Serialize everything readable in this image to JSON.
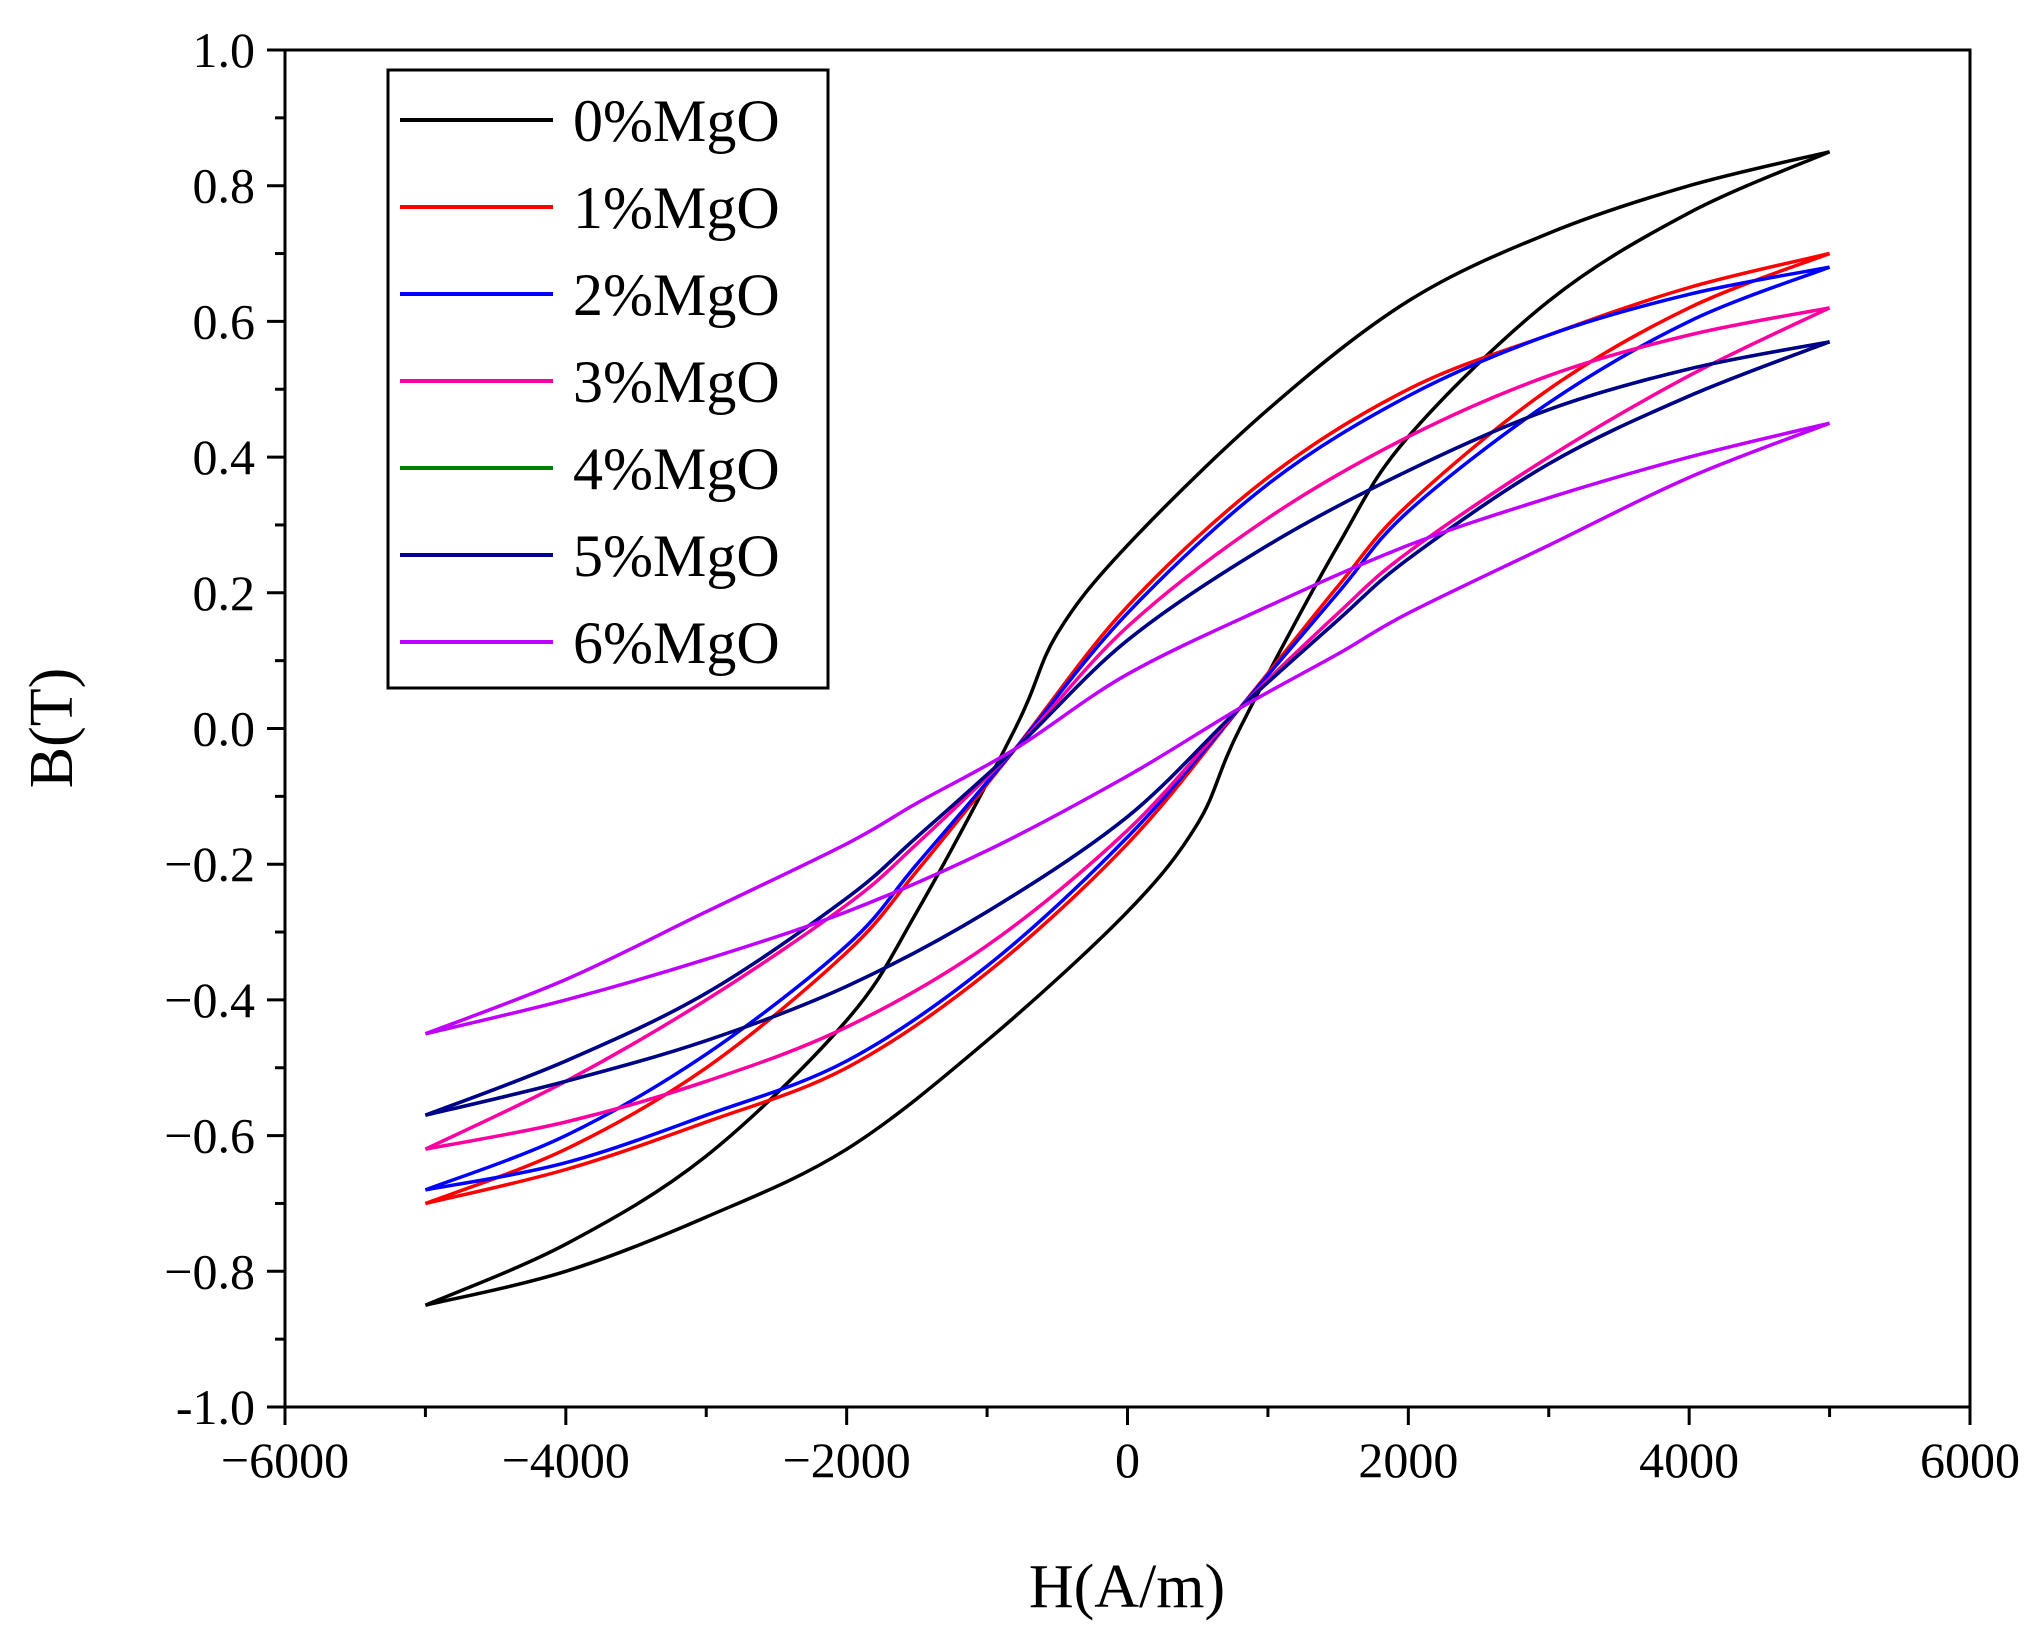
{
  "chart_data": {
    "type": "line",
    "title": "",
    "xlabel": "H(A/m)",
    "ylabel": "B(T)",
    "xlim": [
      -6000,
      6000
    ],
    "ylim": [
      -1.0,
      1.0
    ],
    "x_ticks": [
      -6000,
      -4000,
      -2000,
      0,
      2000,
      4000,
      6000
    ],
    "x_tick_labels": [
      "−6000",
      "−4000",
      "−2000",
      "0",
      "2000",
      "4000",
      "6000"
    ],
    "y_ticks": [
      -1.0,
      -0.8,
      -0.6,
      -0.4,
      -0.2,
      0.0,
      0.2,
      0.4,
      0.6,
      0.8,
      1.0
    ],
    "y_tick_labels": [
      "-1.0",
      "−0.8",
      "−0.6",
      "−0.4",
      "−0.2",
      "0.0",
      "0.2",
      "0.4",
      "0.6",
      "0.8",
      "1.0"
    ],
    "grid": false,
    "legend_position": "top-left",
    "series": [
      {
        "name": "0%MgO",
        "color": "#000000",
        "upper": [
          [
            -5000,
            -0.85
          ],
          [
            -4000,
            -0.8
          ],
          [
            -3000,
            -0.72
          ],
          [
            -2000,
            -0.62
          ],
          [
            -1000,
            -0.46
          ],
          [
            0,
            -0.27
          ],
          [
            500,
            -0.14
          ],
          [
            800,
            0.0
          ],
          [
            1500,
            0.27
          ],
          [
            2000,
            0.43
          ],
          [
            3000,
            0.63
          ],
          [
            4000,
            0.76
          ],
          [
            5000,
            0.85
          ]
        ],
        "lower": [
          [
            5000,
            0.85
          ],
          [
            4000,
            0.8
          ],
          [
            3000,
            0.73
          ],
          [
            2000,
            0.63
          ],
          [
            1000,
            0.47
          ],
          [
            0,
            0.27
          ],
          [
            -500,
            0.14
          ],
          [
            -800,
            0.0
          ],
          [
            -1500,
            -0.27
          ],
          [
            -2000,
            -0.43
          ],
          [
            -3000,
            -0.63
          ],
          [
            -4000,
            -0.76
          ],
          [
            -5000,
            -0.85
          ]
        ]
      },
      {
        "name": "1%MgO",
        "color": "#ff0000",
        "upper": [
          [
            -5000,
            -0.7
          ],
          [
            -4000,
            -0.65
          ],
          [
            -3000,
            -0.58
          ],
          [
            -2000,
            -0.5
          ],
          [
            -1000,
            -0.36
          ],
          [
            0,
            -0.17
          ],
          [
            800,
            0.03
          ],
          [
            1500,
            0.21
          ],
          [
            2000,
            0.33
          ],
          [
            3000,
            0.5
          ],
          [
            4000,
            0.62
          ],
          [
            5000,
            0.7
          ]
        ],
        "lower": [
          [
            5000,
            0.7
          ],
          [
            4000,
            0.65
          ],
          [
            3000,
            0.58
          ],
          [
            2000,
            0.5
          ],
          [
            1000,
            0.37
          ],
          [
            0,
            0.18
          ],
          [
            -800,
            -0.03
          ],
          [
            -1500,
            -0.21
          ],
          [
            -2000,
            -0.33
          ],
          [
            -3000,
            -0.5
          ],
          [
            -4000,
            -0.62
          ],
          [
            -5000,
            -0.7
          ]
        ]
      },
      {
        "name": "2%MgO",
        "color": "#0000ff",
        "upper": [
          [
            -5000,
            -0.68
          ],
          [
            -4000,
            -0.64
          ],
          [
            -3000,
            -0.57
          ],
          [
            -2000,
            -0.49
          ],
          [
            -1000,
            -0.35
          ],
          [
            0,
            -0.16
          ],
          [
            800,
            0.03
          ],
          [
            1500,
            0.2
          ],
          [
            2000,
            0.32
          ],
          [
            3000,
            0.48
          ],
          [
            4000,
            0.6
          ],
          [
            5000,
            0.68
          ]
        ],
        "lower": [
          [
            5000,
            0.68
          ],
          [
            4000,
            0.64
          ],
          [
            3000,
            0.58
          ],
          [
            2000,
            0.49
          ],
          [
            1000,
            0.36
          ],
          [
            0,
            0.17
          ],
          [
            -800,
            -0.03
          ],
          [
            -1500,
            -0.2
          ],
          [
            -2000,
            -0.32
          ],
          [
            -3000,
            -0.48
          ],
          [
            -4000,
            -0.6
          ],
          [
            -5000,
            -0.68
          ]
        ]
      },
      {
        "name": "3%MgO",
        "color": "#ff00a0",
        "upper": [
          [
            -5000,
            -0.62
          ],
          [
            -4000,
            -0.58
          ],
          [
            -3000,
            -0.52
          ],
          [
            -2000,
            -0.44
          ],
          [
            -1000,
            -0.32
          ],
          [
            0,
            -0.15
          ],
          [
            800,
            0.03
          ],
          [
            1500,
            0.17
          ],
          [
            2000,
            0.26
          ],
          [
            3000,
            0.4
          ],
          [
            4000,
            0.52
          ],
          [
            5000,
            0.62
          ]
        ],
        "lower": [
          [
            5000,
            0.62
          ],
          [
            4000,
            0.58
          ],
          [
            3000,
            0.52
          ],
          [
            2000,
            0.43
          ],
          [
            1000,
            0.31
          ],
          [
            0,
            0.15
          ],
          [
            -800,
            -0.03
          ],
          [
            -1500,
            -0.17
          ],
          [
            -2000,
            -0.26
          ],
          [
            -3000,
            -0.4
          ],
          [
            -4000,
            -0.52
          ],
          [
            -5000,
            -0.62
          ]
        ]
      },
      {
        "name": "4%MgO",
        "color": "#008000",
        "upper": [
          [
            -5000,
            -0.57
          ],
          [
            -4000,
            -0.52
          ],
          [
            -3000,
            -0.46
          ],
          [
            -2000,
            -0.38
          ],
          [
            -1000,
            -0.27
          ],
          [
            0,
            -0.13
          ],
          [
            800,
            0.03
          ],
          [
            1500,
            0.16
          ],
          [
            2000,
            0.25
          ],
          [
            3000,
            0.39
          ],
          [
            4000,
            0.49
          ],
          [
            5000,
            0.57
          ]
        ],
        "lower": [
          [
            5000,
            0.57
          ],
          [
            4000,
            0.53
          ],
          [
            3000,
            0.47
          ],
          [
            2000,
            0.38
          ],
          [
            1000,
            0.27
          ],
          [
            0,
            0.13
          ],
          [
            -800,
            -0.03
          ],
          [
            -1500,
            -0.16
          ],
          [
            -2000,
            -0.25
          ],
          [
            -3000,
            -0.39
          ],
          [
            -4000,
            -0.49
          ],
          [
            -5000,
            -0.57
          ]
        ]
      },
      {
        "name": "5%MgO",
        "color": "#00008b",
        "upper": [
          [
            -5000,
            -0.57
          ],
          [
            -4000,
            -0.52
          ],
          [
            -3000,
            -0.46
          ],
          [
            -2000,
            -0.38
          ],
          [
            -1000,
            -0.27
          ],
          [
            0,
            -0.13
          ],
          [
            800,
            0.03
          ],
          [
            1500,
            0.16
          ],
          [
            2000,
            0.25
          ],
          [
            3000,
            0.39
          ],
          [
            4000,
            0.49
          ],
          [
            5000,
            0.57
          ]
        ],
        "lower": [
          [
            5000,
            0.57
          ],
          [
            4000,
            0.53
          ],
          [
            3000,
            0.47
          ],
          [
            2000,
            0.38
          ],
          [
            1000,
            0.27
          ],
          [
            0,
            0.13
          ],
          [
            -800,
            -0.03
          ],
          [
            -1500,
            -0.16
          ],
          [
            -2000,
            -0.25
          ],
          [
            -3000,
            -0.39
          ],
          [
            -4000,
            -0.49
          ],
          [
            -5000,
            -0.57
          ]
        ]
      },
      {
        "name": "6%MgO",
        "color": "#bf00ff",
        "upper": [
          [
            -5000,
            -0.45
          ],
          [
            -4000,
            -0.4
          ],
          [
            -3000,
            -0.34
          ],
          [
            -2000,
            -0.27
          ],
          [
            -1000,
            -0.18
          ],
          [
            0,
            -0.07
          ],
          [
            800,
            0.03
          ],
          [
            1500,
            0.11
          ],
          [
            2000,
            0.17
          ],
          [
            3000,
            0.27
          ],
          [
            4000,
            0.37
          ],
          [
            5000,
            0.45
          ]
        ],
        "lower": [
          [
            5000,
            0.45
          ],
          [
            4000,
            0.4
          ],
          [
            3000,
            0.34
          ],
          [
            2000,
            0.27
          ],
          [
            1000,
            0.18
          ],
          [
            0,
            0.08
          ],
          [
            -800,
            -0.03
          ],
          [
            -1500,
            -0.11
          ],
          [
            -2000,
            -0.17
          ],
          [
            -3000,
            -0.27
          ],
          [
            -4000,
            -0.37
          ],
          [
            -5000,
            -0.45
          ]
        ]
      }
    ]
  }
}
